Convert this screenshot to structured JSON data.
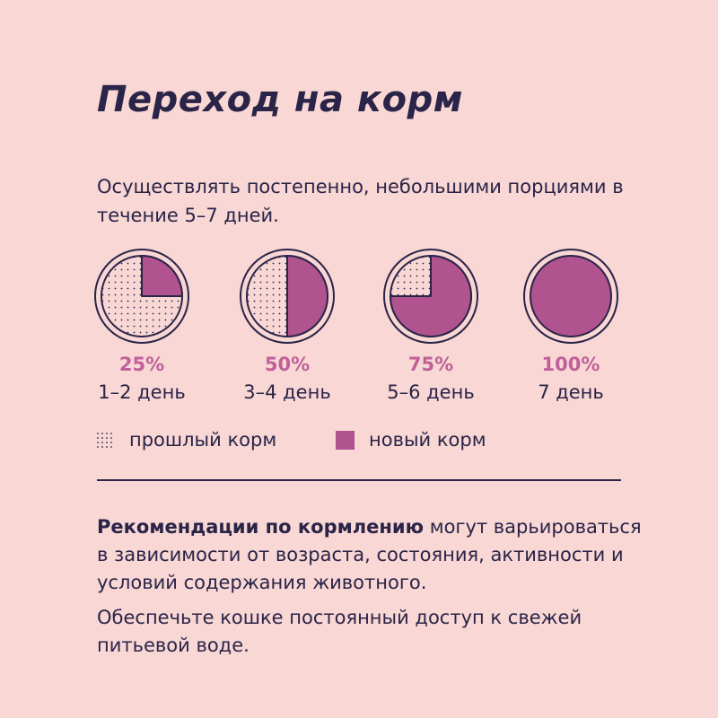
{
  "title": "Переход на корм",
  "intro": "Осуществлять постепенно, небольшими порциями в течение 5–7 дней.",
  "colors": {
    "background": "#f8d7d4",
    "text": "#2a2448",
    "new_food": "#b0538f",
    "percent": "#c0609b"
  },
  "chart_data": {
    "type": "pie",
    "series": [
      {
        "name": "новый корм"
      },
      {
        "name": "прошлый корм"
      }
    ],
    "steps": [
      {
        "label": "25%",
        "day": "1–2 день",
        "new_food_pct": 25
      },
      {
        "label": "50%",
        "day": "3–4 день",
        "new_food_pct": 50
      },
      {
        "label": "75%",
        "day": "5–6 день",
        "new_food_pct": 75
      },
      {
        "label": "100%",
        "day": "7 день",
        "new_food_pct": 100
      }
    ]
  },
  "legend": {
    "old": "прошлый корм",
    "new": "новый корм"
  },
  "recommendation": {
    "bold": "Рекомендации по кормлению",
    "rest": " могут варьироваться в зависимости от возраста, состояния, активности и условий содержания животного.",
    "water": "Обеспечьте кошке постоянный доступ к свежей питьевой воде."
  }
}
